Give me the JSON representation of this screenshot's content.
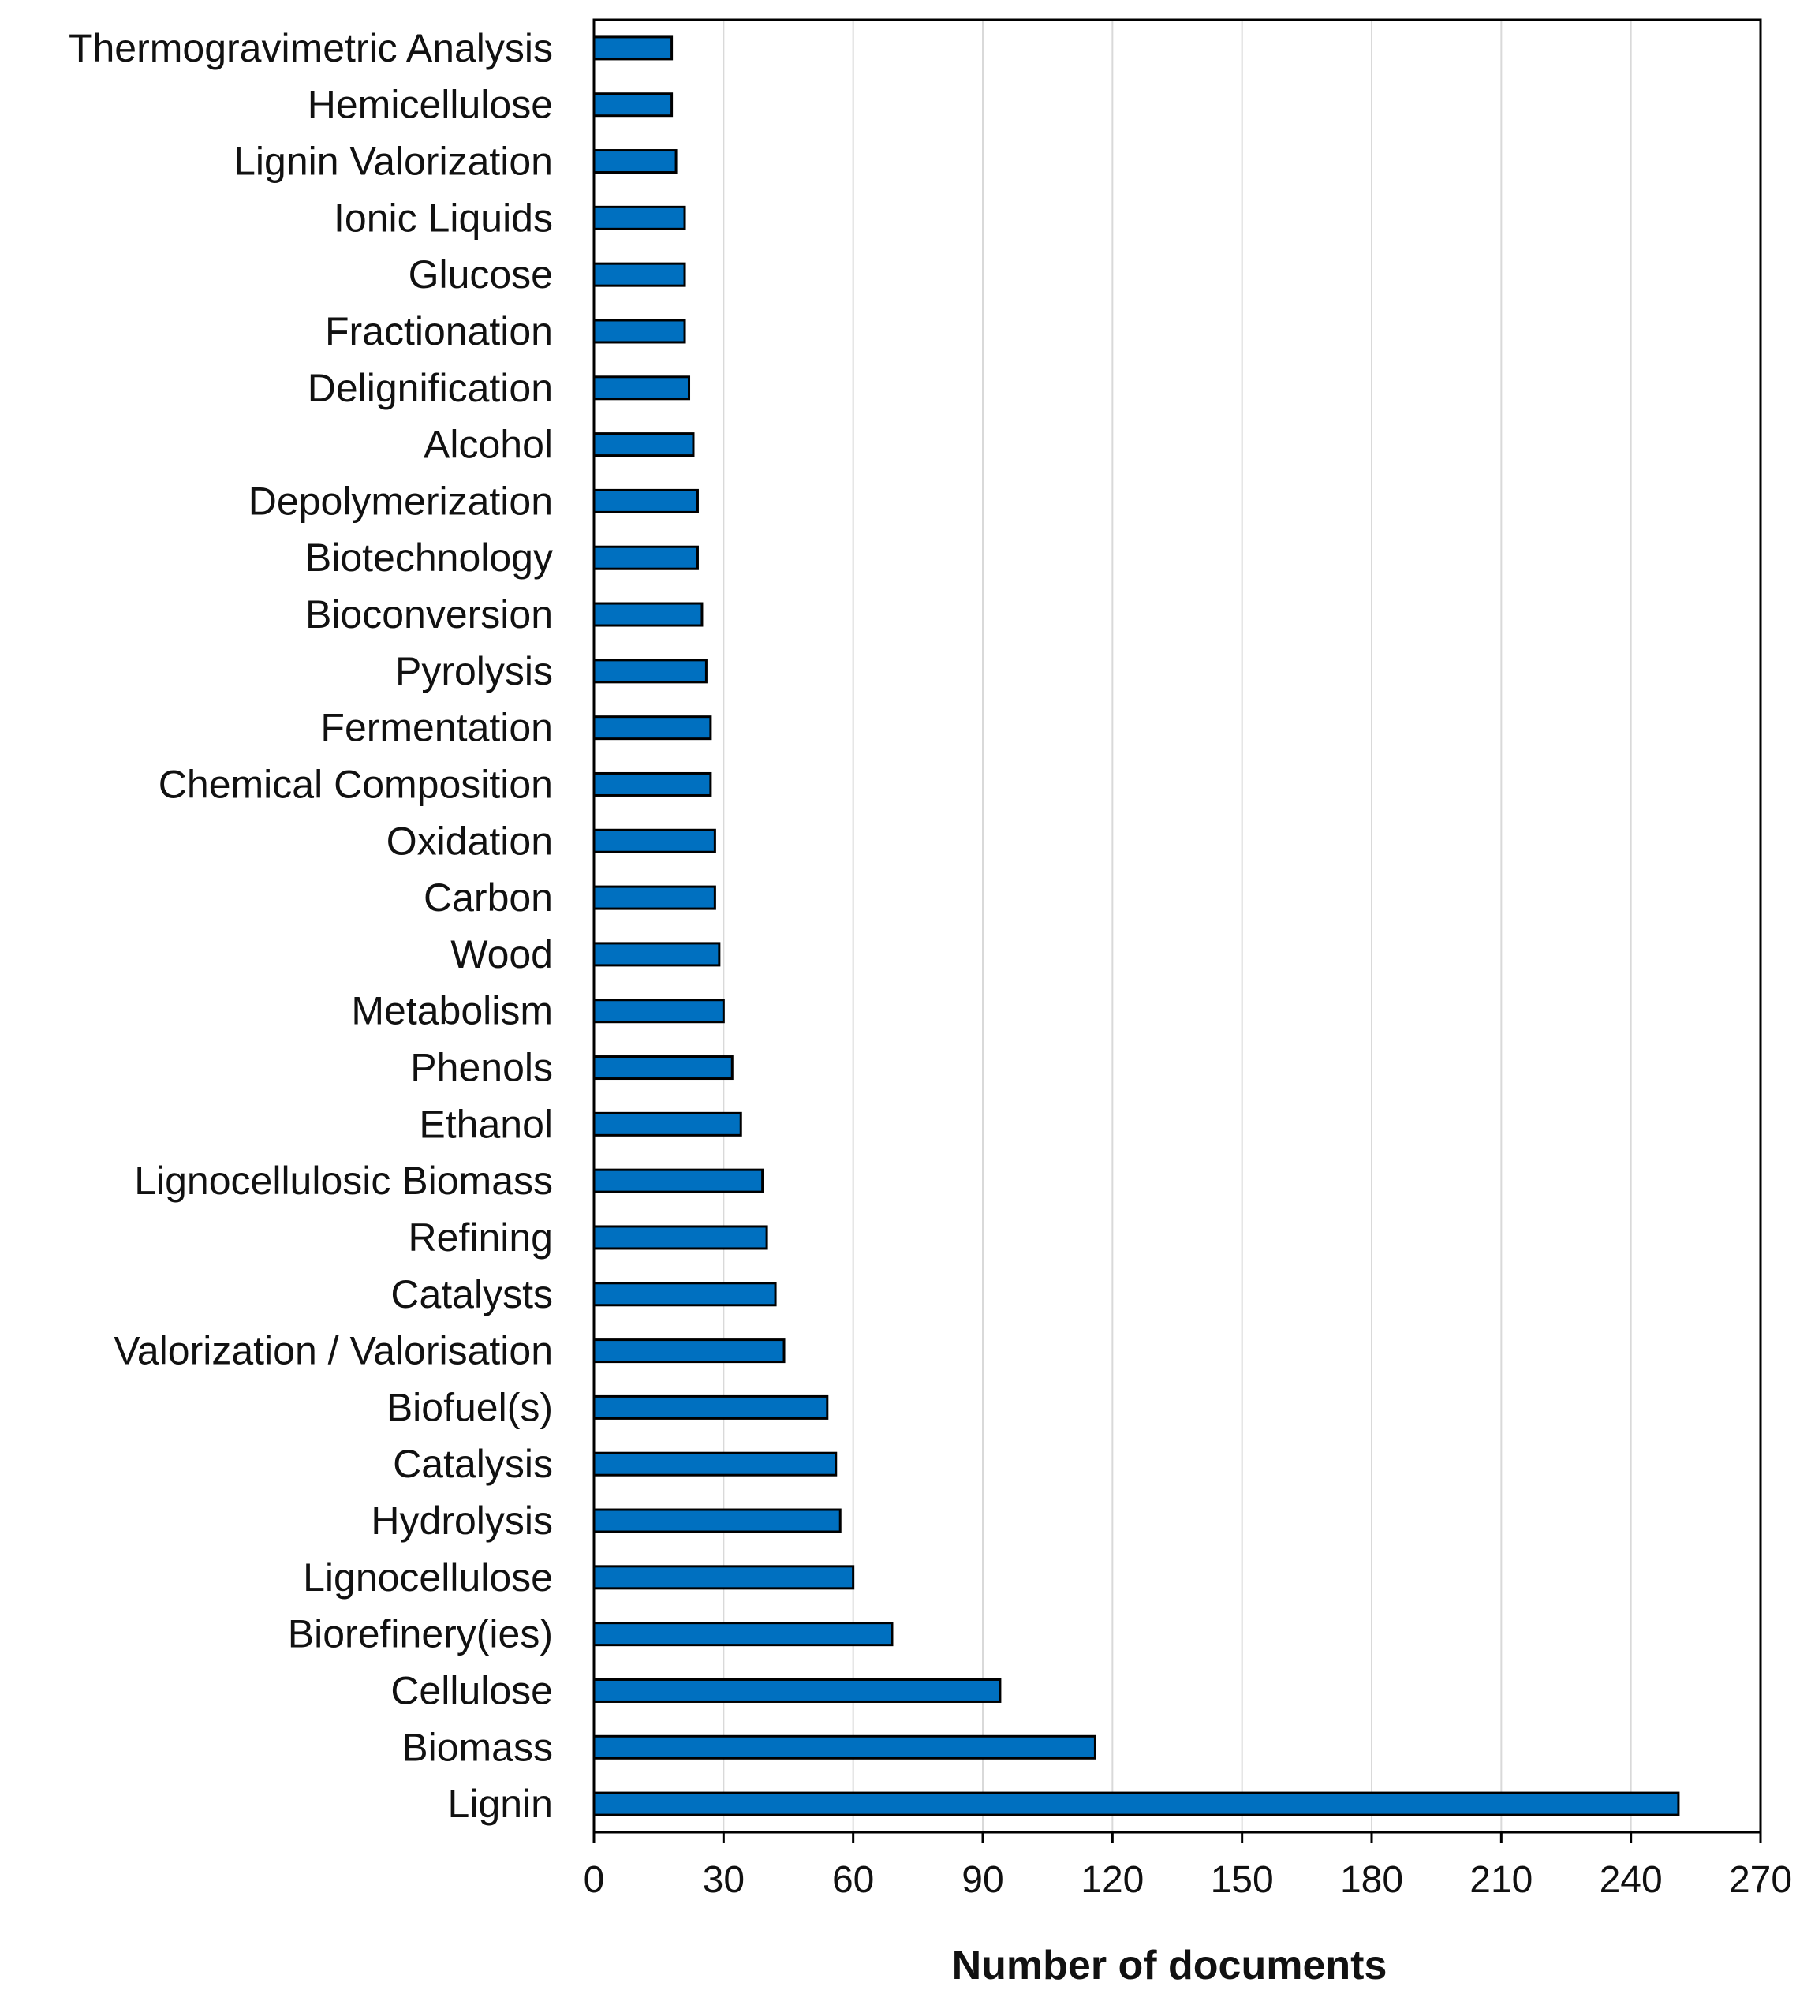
{
  "chart_data": {
    "type": "bar",
    "orientation": "horizontal",
    "title": "",
    "xlabel": "Number of documents",
    "ylabel": "",
    "xlim": [
      0,
      270
    ],
    "xticks": [
      0,
      30,
      60,
      90,
      120,
      150,
      180,
      210,
      240,
      270
    ],
    "grid": "vertical",
    "legend": "none",
    "bar_color": "#0070C0",
    "categories": [
      "Thermogravimetric Analysis",
      "Hemicellulose",
      "Lignin Valorization",
      "Ionic Liquids",
      "Glucose",
      "Fractionation",
      "Delignification",
      "Alcohol",
      "Depolymerization",
      "Biotechnology",
      "Bioconversion",
      "Pyrolysis",
      "Fermentation",
      "Chemical Composition",
      "Oxidation",
      "Carbon",
      "Wood",
      "Metabolism",
      "Phenols",
      "Ethanol",
      "Lignocellulosic Biomass",
      "Refining",
      "Catalysts",
      "Valorization / Valorisation",
      "Biofuel(s)",
      "Catalysis",
      "Hydrolysis",
      "Lignocellulose",
      "Biorefinery(ies)",
      "Cellulose",
      "Biomass",
      "Lignin"
    ],
    "values": [
      18,
      18,
      19,
      21,
      21,
      21,
      22,
      23,
      24,
      24,
      25,
      26,
      27,
      27,
      28,
      28,
      29,
      30,
      32,
      34,
      39,
      40,
      42,
      44,
      54,
      56,
      57,
      60,
      69,
      94,
      116,
      251
    ]
  }
}
